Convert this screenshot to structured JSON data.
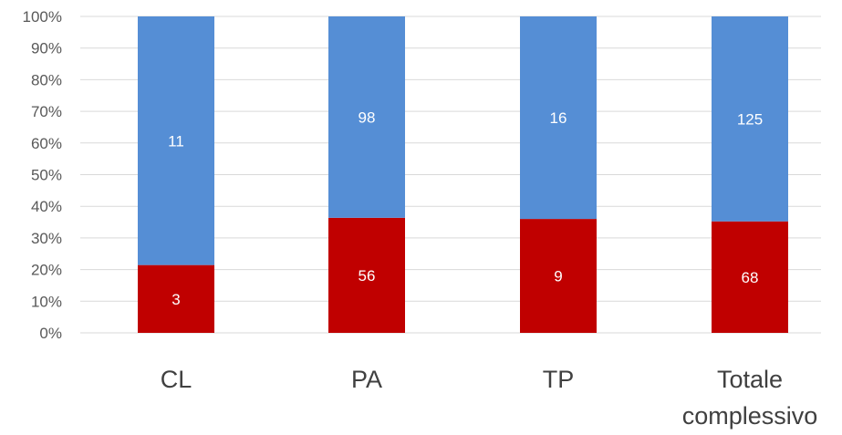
{
  "chart_data": {
    "type": "bar",
    "stacked": "percent",
    "categories": [
      [
        "CL"
      ],
      [
        "PA"
      ],
      [
        "TP"
      ],
      [
        "Totale",
        "complessivo"
      ]
    ],
    "series": [
      {
        "values": [
          3,
          56,
          9,
          68
        ],
        "color": "#c00000"
      },
      {
        "values": [
          11,
          98,
          16,
          125
        ],
        "color": "#558ed5"
      }
    ],
    "yticks": [
      "0%",
      "10%",
      "20%",
      "30%",
      "40%",
      "50%",
      "60%",
      "70%",
      "80%",
      "90%",
      "100%"
    ],
    "ylim": [
      0,
      100
    ],
    "grid": true,
    "legend": "none",
    "title": "",
    "xlabel": "",
    "ylabel": ""
  }
}
